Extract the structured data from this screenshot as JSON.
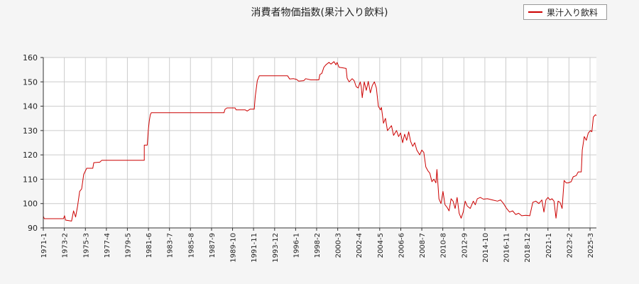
{
  "chart_data": {
    "type": "line",
    "title": "消費者物価指数(果汁入り飲料)",
    "xlabel": "",
    "ylabel": "",
    "ylim": [
      90,
      160
    ],
    "yticks": [
      90,
      100,
      110,
      120,
      130,
      140,
      150,
      160
    ],
    "xlim": [
      1971.0,
      2025.8
    ],
    "xticks": [
      {
        "t": 1971.0,
        "label": "1971-1"
      },
      {
        "t": 1973.08,
        "label": "1973-2"
      },
      {
        "t": 1975.17,
        "label": "1975-3"
      },
      {
        "t": 1977.25,
        "label": "1977-4"
      },
      {
        "t": 1979.33,
        "label": "1979-5"
      },
      {
        "t": 1981.42,
        "label": "1981-6"
      },
      {
        "t": 1983.5,
        "label": "1983-7"
      },
      {
        "t": 1985.58,
        "label": "1985-8"
      },
      {
        "t": 1987.67,
        "label": "1987-9"
      },
      {
        "t": 1989.75,
        "label": "1989-10"
      },
      {
        "t": 1991.83,
        "label": "1991-11"
      },
      {
        "t": 1993.92,
        "label": "1993-12"
      },
      {
        "t": 1996.0,
        "label": "1996-1"
      },
      {
        "t": 1998.08,
        "label": "1998-2"
      },
      {
        "t": 2000.17,
        "label": "2000-3"
      },
      {
        "t": 2002.25,
        "label": "2002-4"
      },
      {
        "t": 2004.33,
        "label": "2004-5"
      },
      {
        "t": 2006.42,
        "label": "2006-6"
      },
      {
        "t": 2008.5,
        "label": "2008-7"
      },
      {
        "t": 2010.58,
        "label": "2010-8"
      },
      {
        "t": 2012.67,
        "label": "2012-9"
      },
      {
        "t": 2014.75,
        "label": "2014-10"
      },
      {
        "t": 2016.83,
        "label": "2016-11"
      },
      {
        "t": 2018.92,
        "label": "2018-12"
      },
      {
        "t": 2021.0,
        "label": "2021-1"
      },
      {
        "t": 2023.08,
        "label": "2023-2"
      },
      {
        "t": 2025.17,
        "label": "2025-3"
      }
    ],
    "grid": true,
    "legend_position": "top-right",
    "series": [
      {
        "name": "果汁入り飲料",
        "color": "#cc0000",
        "points": [
          [
            1971.0,
            94.8
          ],
          [
            1971.1,
            93.8
          ],
          [
            1973.0,
            93.8
          ],
          [
            1973.1,
            95.0
          ],
          [
            1973.2,
            93.2
          ],
          [
            1973.8,
            92.8
          ],
          [
            1974.0,
            97.0
          ],
          [
            1974.2,
            94.5
          ],
          [
            1974.4,
            99.0
          ],
          [
            1974.6,
            105.0
          ],
          [
            1974.8,
            106.0
          ],
          [
            1975.0,
            112.0
          ],
          [
            1975.3,
            114.5
          ],
          [
            1975.9,
            114.5
          ],
          [
            1976.0,
            116.8
          ],
          [
            1976.6,
            117.0
          ],
          [
            1976.8,
            117.8
          ],
          [
            1981.0,
            117.8
          ],
          [
            1981.0,
            124.0
          ],
          [
            1981.3,
            124.0
          ],
          [
            1981.4,
            130.0
          ],
          [
            1981.5,
            134.0
          ],
          [
            1981.6,
            136.5
          ],
          [
            1981.7,
            137.3
          ],
          [
            1988.9,
            137.3
          ],
          [
            1989.0,
            138.7
          ],
          [
            1989.2,
            139.3
          ],
          [
            1990.0,
            139.3
          ],
          [
            1990.1,
            138.5
          ],
          [
            1991.0,
            138.5
          ],
          [
            1991.2,
            138.0
          ],
          [
            1991.5,
            138.8
          ],
          [
            1991.9,
            138.8
          ],
          [
            1992.0,
            144.0
          ],
          [
            1992.2,
            150.5
          ],
          [
            1992.4,
            152.5
          ],
          [
            1994.0,
            152.5
          ],
          [
            1995.2,
            152.5
          ],
          [
            1995.4,
            151.2
          ],
          [
            1995.8,
            151.3
          ],
          [
            1996.1,
            151.0
          ],
          [
            1996.3,
            150.3
          ],
          [
            1996.8,
            150.5
          ],
          [
            1997.0,
            151.3
          ],
          [
            1997.5,
            150.8
          ],
          [
            1998.3,
            150.8
          ],
          [
            1998.4,
            153.0
          ],
          [
            1998.6,
            153.5
          ],
          [
            1998.8,
            156.0
          ],
          [
            1999.0,
            157.0
          ],
          [
            1999.3,
            158.0
          ],
          [
            1999.5,
            157.3
          ],
          [
            1999.8,
            158.3
          ],
          [
            2000.0,
            157.0
          ],
          [
            2000.1,
            158.0
          ],
          [
            2000.3,
            156.0
          ],
          [
            2000.6,
            155.8
          ],
          [
            2001.0,
            155.5
          ],
          [
            2001.1,
            151.5
          ],
          [
            2001.3,
            150.0
          ],
          [
            2001.6,
            151.3
          ],
          [
            2001.8,
            150.5
          ],
          [
            2002.0,
            148.0
          ],
          [
            2002.2,
            147.5
          ],
          [
            2002.4,
            150.0
          ],
          [
            2002.5,
            148.0
          ],
          [
            2002.6,
            143.5
          ],
          [
            2002.8,
            150.0
          ],
          [
            2003.0,
            146.5
          ],
          [
            2003.2,
            150.2
          ],
          [
            2003.4,
            145.5
          ],
          [
            2003.6,
            148.5
          ],
          [
            2003.8,
            150.0
          ],
          [
            2004.0,
            147.5
          ],
          [
            2004.2,
            140.0
          ],
          [
            2004.4,
            138.5
          ],
          [
            2004.5,
            139.5
          ],
          [
            2004.7,
            133.0
          ],
          [
            2004.9,
            135.0
          ],
          [
            2005.1,
            130.0
          ],
          [
            2005.3,
            131.0
          ],
          [
            2005.5,
            132.0
          ],
          [
            2005.7,
            128.0
          ],
          [
            2006.0,
            130.0
          ],
          [
            2006.2,
            127.5
          ],
          [
            2006.4,
            129.0
          ],
          [
            2006.6,
            125.0
          ],
          [
            2006.8,
            128.5
          ],
          [
            2007.0,
            126.0
          ],
          [
            2007.2,
            129.5
          ],
          [
            2007.4,
            125.5
          ],
          [
            2007.6,
            123.5
          ],
          [
            2007.8,
            125.0
          ],
          [
            2008.0,
            122.0
          ],
          [
            2008.3,
            120.0
          ],
          [
            2008.5,
            122.0
          ],
          [
            2008.7,
            121.0
          ],
          [
            2008.9,
            115.0
          ],
          [
            2009.1,
            113.5
          ],
          [
            2009.3,
            112.5
          ],
          [
            2009.5,
            109.0
          ],
          [
            2009.7,
            110.0
          ],
          [
            2009.9,
            108.5
          ],
          [
            2010.0,
            114.0
          ],
          [
            2010.2,
            102.0
          ],
          [
            2010.4,
            100.0
          ],
          [
            2010.6,
            105.0
          ],
          [
            2010.8,
            99.5
          ],
          [
            2011.0,
            98.5
          ],
          [
            2011.2,
            97.0
          ],
          [
            2011.4,
            102.0
          ],
          [
            2011.6,
            101.0
          ],
          [
            2011.8,
            98.0
          ],
          [
            2012.0,
            102.5
          ],
          [
            2012.2,
            96.0
          ],
          [
            2012.4,
            94.0
          ],
          [
            2012.6,
            96.5
          ],
          [
            2012.8,
            101.0
          ],
          [
            2013.0,
            99.0
          ],
          [
            2013.3,
            98.0
          ],
          [
            2013.6,
            101.0
          ],
          [
            2013.8,
            99.5
          ],
          [
            2014.0,
            102.0
          ],
          [
            2014.3,
            102.5
          ],
          [
            2014.6,
            101.8
          ],
          [
            2015.0,
            102.0
          ],
          [
            2015.5,
            101.5
          ],
          [
            2016.0,
            101.0
          ],
          [
            2016.3,
            101.5
          ],
          [
            2016.6,
            100.0
          ],
          [
            2016.9,
            98.0
          ],
          [
            2017.2,
            96.5
          ],
          [
            2017.5,
            97.0
          ],
          [
            2017.8,
            95.5
          ],
          [
            2018.1,
            96.0
          ],
          [
            2018.4,
            95.0
          ],
          [
            2018.8,
            95.2
          ],
          [
            2019.2,
            95.0
          ],
          [
            2019.5,
            100.5
          ],
          [
            2019.8,
            101.0
          ],
          [
            2020.1,
            100.0
          ],
          [
            2020.4,
            101.5
          ],
          [
            2020.6,
            96.5
          ],
          [
            2020.8,
            101.5
          ],
          [
            2021.0,
            102.5
          ],
          [
            2021.2,
            101.5
          ],
          [
            2021.4,
            102.0
          ],
          [
            2021.6,
            101.0
          ],
          [
            2021.8,
            94.0
          ],
          [
            2022.0,
            101.0
          ],
          [
            2022.2,
            100.5
          ],
          [
            2022.4,
            98.0
          ],
          [
            2022.6,
            109.5
          ],
          [
            2022.8,
            108.5
          ],
          [
            2023.0,
            108.5
          ],
          [
            2023.3,
            109.0
          ],
          [
            2023.5,
            111.0
          ],
          [
            2023.8,
            111.5
          ],
          [
            2024.0,
            113.0
          ],
          [
            2024.3,
            113.0
          ],
          [
            2024.4,
            122.0
          ],
          [
            2024.6,
            127.5
          ],
          [
            2024.8,
            126.0
          ],
          [
            2025.0,
            129.0
          ],
          [
            2025.2,
            130.0
          ],
          [
            2025.35,
            129.5
          ],
          [
            2025.5,
            135.5
          ],
          [
            2025.7,
            136.5
          ],
          [
            2025.8,
            136.2
          ]
        ]
      }
    ]
  }
}
